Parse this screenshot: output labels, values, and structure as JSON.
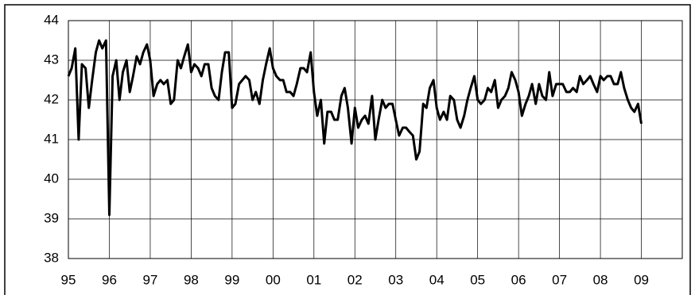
{
  "chart_data": {
    "type": "line",
    "x": [
      1995,
      1995.08,
      1995.17,
      1995.25,
      1995.33,
      1995.42,
      1995.5,
      1995.58,
      1995.67,
      1995.75,
      1995.83,
      1995.92,
      1996,
      1996.08,
      1996.17,
      1996.25,
      1996.33,
      1996.42,
      1996.5,
      1996.58,
      1996.67,
      1996.75,
      1996.83,
      1996.92,
      1997,
      1997.08,
      1997.17,
      1997.25,
      1997.33,
      1997.42,
      1997.5,
      1997.58,
      1997.67,
      1997.75,
      1997.83,
      1997.92,
      1998,
      1998.08,
      1998.17,
      1998.25,
      1998.33,
      1998.42,
      1998.5,
      1998.58,
      1998.67,
      1998.75,
      1998.83,
      1998.92,
      1999,
      1999.08,
      1999.17,
      1999.25,
      1999.33,
      1999.42,
      1999.5,
      1999.58,
      1999.67,
      1999.75,
      1999.83,
      1999.92,
      2000,
      2000.08,
      2000.17,
      2000.25,
      2000.33,
      2000.42,
      2000.5,
      2000.58,
      2000.67,
      2000.75,
      2000.83,
      2000.92,
      2001,
      2001.08,
      2001.17,
      2001.25,
      2001.33,
      2001.42,
      2001.5,
      2001.58,
      2001.67,
      2001.75,
      2001.83,
      2001.92,
      2002,
      2002.08,
      2002.17,
      2002.25,
      2002.33,
      2002.42,
      2002.5,
      2002.58,
      2002.67,
      2002.75,
      2002.83,
      2002.92,
      2003,
      2003.08,
      2003.17,
      2003.25,
      2003.33,
      2003.42,
      2003.5,
      2003.58,
      2003.67,
      2003.75,
      2003.83,
      2003.92,
      2004,
      2004.08,
      2004.17,
      2004.25,
      2004.33,
      2004.42,
      2004.5,
      2004.58,
      2004.67,
      2004.75,
      2004.83,
      2004.92,
      2005,
      2005.08,
      2005.17,
      2005.25,
      2005.33,
      2005.42,
      2005.5,
      2005.58,
      2005.67,
      2005.75,
      2005.83,
      2005.92,
      2006,
      2006.08,
      2006.17,
      2006.25,
      2006.33,
      2006.42,
      2006.5,
      2006.58,
      2006.67,
      2006.75,
      2006.83,
      2006.92,
      2007,
      2007.08,
      2007.17,
      2007.25,
      2007.33,
      2007.42,
      2007.5,
      2007.58,
      2007.67,
      2007.75,
      2007.83,
      2007.92,
      2008,
      2008.08,
      2008.17,
      2008.25,
      2008.33,
      2008.42,
      2008.5,
      2008.58,
      2008.67,
      2008.75,
      2008.83,
      2008.92,
      2009
    ],
    "values": [
      42.6,
      42.8,
      43.3,
      41.0,
      42.9,
      42.8,
      41.8,
      42.5,
      43.2,
      43.5,
      43.3,
      43.5,
      39.1,
      42.6,
      43.0,
      42.0,
      42.7,
      43.0,
      42.2,
      42.6,
      43.1,
      42.9,
      43.2,
      43.4,
      43.0,
      42.1,
      42.4,
      42.5,
      42.4,
      42.5,
      41.9,
      42.0,
      43.0,
      42.8,
      43.1,
      43.4,
      42.7,
      42.9,
      42.8,
      42.6,
      42.9,
      42.9,
      42.3,
      42.1,
      42.0,
      42.7,
      43.2,
      43.2,
      41.8,
      41.9,
      42.4,
      42.5,
      42.6,
      42.5,
      42.0,
      42.2,
      41.9,
      42.5,
      42.9,
      43.3,
      42.8,
      42.6,
      42.5,
      42.5,
      42.2,
      42.2,
      42.1,
      42.4,
      42.8,
      42.8,
      42.7,
      43.2,
      42.2,
      41.6,
      42.0,
      40.9,
      41.7,
      41.7,
      41.5,
      41.5,
      42.1,
      42.3,
      41.8,
      40.9,
      41.8,
      41.3,
      41.5,
      41.6,
      41.4,
      42.1,
      41.0,
      41.5,
      42.0,
      41.8,
      41.9,
      41.9,
      41.5,
      41.1,
      41.3,
      41.3,
      41.2,
      41.1,
      40.5,
      40.7,
      41.9,
      41.8,
      42.3,
      42.5,
      41.8,
      41.5,
      41.7,
      41.5,
      42.1,
      42.0,
      41.5,
      41.3,
      41.6,
      42.0,
      42.3,
      42.6,
      42.0,
      41.9,
      42.0,
      42.3,
      42.2,
      42.5,
      41.8,
      42.0,
      42.1,
      42.3,
      42.7,
      42.5,
      42.2,
      41.6,
      41.9,
      42.1,
      42.4,
      41.9,
      42.4,
      42.1,
      42.0,
      42.7,
      42.1,
      42.4,
      42.4,
      42.4,
      42.2,
      42.2,
      42.3,
      42.2,
      42.6,
      42.4,
      42.5,
      42.6,
      42.4,
      42.2,
      42.6,
      42.5,
      42.6,
      42.6,
      42.4,
      42.4,
      42.7,
      42.3,
      42.0,
      41.8,
      41.7,
      41.9,
      41.4
    ],
    "color": "#000000",
    "xlim": [
      1995,
      2010
    ],
    "xticks": [
      {
        "value": 1995,
        "label": "95"
      },
      {
        "value": 1996,
        "label": "96"
      },
      {
        "value": 1997,
        "label": "97"
      },
      {
        "value": 1998,
        "label": "98"
      },
      {
        "value": 1999,
        "label": "99"
      },
      {
        "value": 2000,
        "label": "00"
      },
      {
        "value": 2001,
        "label": "01"
      },
      {
        "value": 2002,
        "label": "02"
      },
      {
        "value": 2003,
        "label": "03"
      },
      {
        "value": 2004,
        "label": "04"
      },
      {
        "value": 2005,
        "label": "05"
      },
      {
        "value": 2006,
        "label": "06"
      },
      {
        "value": 2007,
        "label": "07"
      },
      {
        "value": 2008,
        "label": "08"
      },
      {
        "value": 2009,
        "label": "09"
      }
    ],
    "ylim": [
      38,
      44
    ],
    "yticks": [
      38,
      39,
      40,
      41,
      42,
      43,
      44
    ],
    "grid": true
  }
}
